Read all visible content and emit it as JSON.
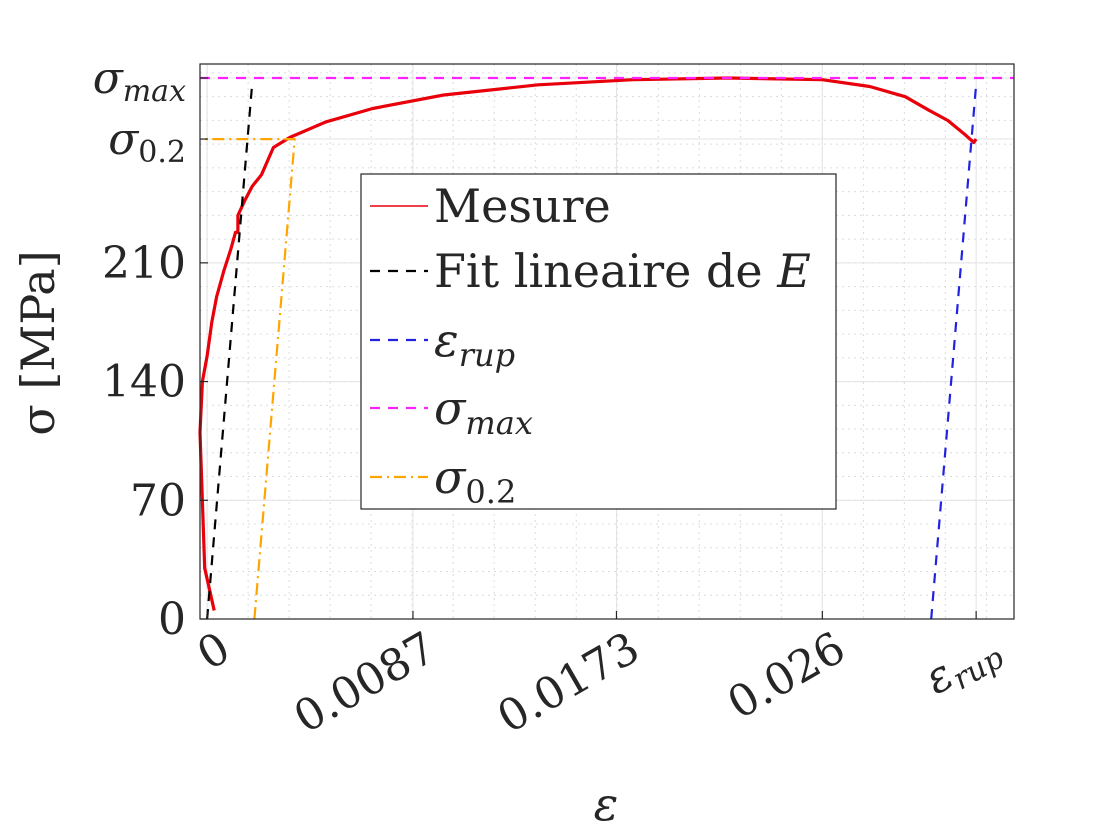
{
  "chart_data": {
    "type": "line",
    "title": "",
    "xlabel": "ε",
    "ylabel": "σ [MPa]",
    "xlim": [
      -0.0003,
      0.0341
    ],
    "ylim": [
      0,
      319
    ],
    "grid": true,
    "minor_grid": true,
    "legend_placement": "center",
    "x_ticks": [
      {
        "value": 0,
        "label": "0",
        "math": false
      },
      {
        "value": 0.0087,
        "label": "0.0087",
        "math": false
      },
      {
        "value": 0.0173,
        "label": "0.0173",
        "math": false
      },
      {
        "value": 0.026,
        "label": "0.026",
        "math": false
      },
      {
        "value": 0.0325,
        "label": "ε",
        "sub": "rup",
        "math": true
      }
    ],
    "y_ticks": [
      {
        "value": 0,
        "label": "0",
        "math": false
      },
      {
        "value": 70,
        "label": "70",
        "math": false
      },
      {
        "value": 140,
        "label": "140",
        "math": false
      },
      {
        "value": 210,
        "label": "210",
        "math": false
      },
      {
        "value": 283,
        "label": "σ",
        "sub": "0.2",
        "math": true
      },
      {
        "value": 319,
        "label": "σ",
        "sub": "max",
        "math": true
      }
    ],
    "series": [
      {
        "name": "Mesure",
        "color": "#e8000b",
        "style": "solid",
        "x": [
          0.0003,
          -0.0001,
          -0.0003,
          -0.0002,
          0.0,
          0.0002,
          0.0004,
          0.0007,
          0.001,
          0.0012,
          0.0013,
          0.0013,
          0.0016,
          0.0019,
          0.0023,
          0.0028,
          0.0035,
          0.005,
          0.007,
          0.01,
          0.014,
          0.018,
          0.022,
          0.026,
          0.028,
          0.0295,
          0.0305,
          0.0313,
          0.032,
          0.0324,
          0.0325
        ],
        "y": [
          5,
          30,
          110,
          140,
          155,
          175,
          190,
          205,
          218,
          228,
          228,
          238,
          247,
          255,
          262,
          278,
          284,
          293,
          301,
          309,
          315,
          318,
          319,
          318,
          314,
          308,
          300,
          294,
          286,
          281,
          283
        ]
      },
      {
        "name": "Fit lineaire de E",
        "color": "#000000",
        "style": "dashed",
        "x": [
          0.0,
          0.0019
        ],
        "y": [
          0,
          315
        ]
      },
      {
        "name": "ε_rup",
        "color": "#2222e0",
        "style": "dashed",
        "x": [
          0.0306,
          0.0325
        ],
        "y": [
          0,
          315
        ]
      },
      {
        "name": "σ_max",
        "color": "#ff22ff",
        "style": "dashed",
        "x": [
          -0.0003,
          0.0341
        ],
        "y": [
          319,
          319
        ]
      },
      {
        "name": "σ_0.2",
        "color": "#ffa500",
        "style": "dashdot",
        "x": [
          0.002,
          0.0037,
          -0.0003
        ],
        "y": [
          0,
          283,
          283
        ]
      }
    ],
    "legend": [
      {
        "label": "Mesure",
        "math_sym": "",
        "math_sub": "",
        "color": "#e8000b",
        "dash": ""
      },
      {
        "label": "Fit lineaire de ",
        "math_sym": "E",
        "math_sub": "",
        "color": "#000000",
        "dash": "10,8"
      },
      {
        "label": "",
        "math_sym": "ε",
        "math_sub": "rup",
        "color": "#2222e0",
        "dash": "10,8"
      },
      {
        "label": "",
        "math_sym": "σ",
        "math_sub": "max",
        "color": "#ff22ff",
        "dash": "10,8"
      },
      {
        "label": "",
        "math_sym": "σ",
        "math_sub": "0.2",
        "color": "#ffa500",
        "dash": "12,5,2,5"
      }
    ]
  }
}
